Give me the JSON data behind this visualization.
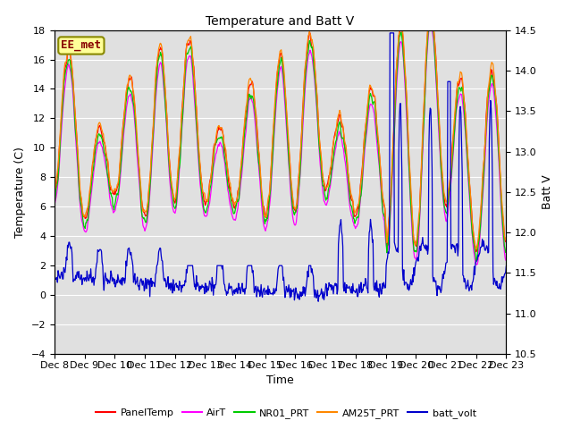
{
  "title": "Temperature and Batt V",
  "xlabel": "Time",
  "ylabel_left": "Temperature (C)",
  "ylabel_right": "Batt V",
  "ylim_left": [
    -4,
    18
  ],
  "ylim_right": [
    10.5,
    14.5
  ],
  "yticks_left": [
    -4,
    -2,
    0,
    2,
    4,
    6,
    8,
    10,
    12,
    14,
    16,
    18
  ],
  "yticks_right": [
    10.5,
    11.0,
    11.5,
    12.0,
    12.5,
    13.0,
    13.5,
    14.0,
    14.5
  ],
  "xtick_labels": [
    "Dec 8",
    "Dec 9",
    "Dec 10",
    "Dec 11",
    "Dec 12",
    "Dec 13",
    "Dec 14",
    "Dec 15",
    "Dec 16",
    "Dec 17",
    "Dec 18",
    "Dec 19",
    "Dec 20",
    "Dec 21",
    "Dec 22",
    "Dec 23"
  ],
  "n_days": 15,
  "series_colors": {
    "PanelTemp": "#ff0000",
    "AirT": "#ff00ff",
    "NR01_PRT": "#00cc00",
    "AM25T_PRT": "#ff8800",
    "batt_volt": "#0000cc"
  },
  "lw": 0.9,
  "annotation": {
    "text": "EE_met",
    "color": "#880000",
    "bg": "#ffff99",
    "border": "#888800",
    "fontsize": 9
  },
  "bg_color": "#e0e0e0",
  "grid_color": "#ffffff",
  "title_fontsize": 10,
  "axis_fontsize": 9,
  "tick_fontsize": 8,
  "legend_fontsize": 8
}
